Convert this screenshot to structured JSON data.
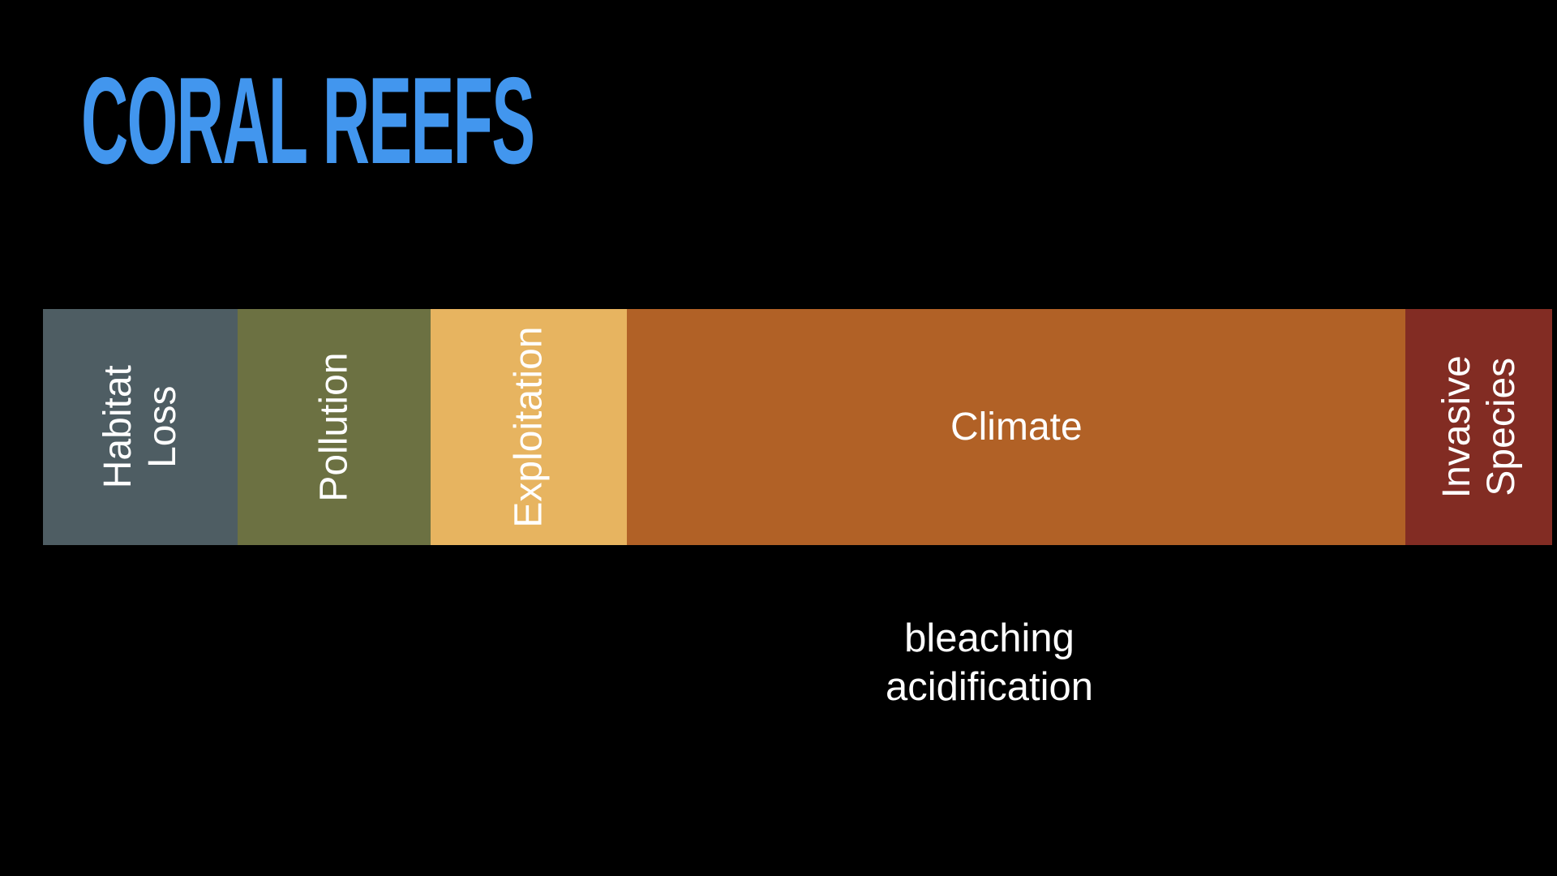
{
  "slide": {
    "title": "CORAL REEFS",
    "title_color": "#4296ee",
    "background_color": "#000000"
  },
  "annotation": {
    "line1": "bleaching",
    "line2": "acidification",
    "color": "#ffffff"
  },
  "chart_data": {
    "type": "bar",
    "variant": "horizontal-proportional-stacked",
    "title": "CORAL REEFS",
    "categories": [
      "Habitat Loss",
      "Pollution",
      "Exploitation",
      "Climate",
      "Invasive Species"
    ],
    "values": [
      12.9,
      12.8,
      13.0,
      51.6,
      9.7
    ],
    "unit": "percent-of-bar-width",
    "axes": false,
    "grid": false,
    "legend": false,
    "label_color": "#ffffff",
    "annotations": [
      {
        "text": "bleaching acidification",
        "target": "Climate",
        "position": "below-bar"
      }
    ],
    "segments": [
      {
        "id": "habitat-loss",
        "label": "Habitat Loss",
        "share_pct": 12.9,
        "color": "#4e5d63",
        "label_orientation": "vertical"
      },
      {
        "id": "pollution",
        "label": "Pollution",
        "share_pct": 12.8,
        "color": "#6c7142",
        "label_orientation": "vertical"
      },
      {
        "id": "exploitation",
        "label": "Exploitation",
        "share_pct": 13.0,
        "color": "#e7b460",
        "label_orientation": "vertical"
      },
      {
        "id": "climate",
        "label": "Climate",
        "share_pct": 51.6,
        "color": "#b16126",
        "label_orientation": "horizontal"
      },
      {
        "id": "invasive-species",
        "label": "Invasive\nSpecies",
        "share_pct": 9.7,
        "color": "#822c23",
        "label_orientation": "vertical"
      }
    ]
  }
}
